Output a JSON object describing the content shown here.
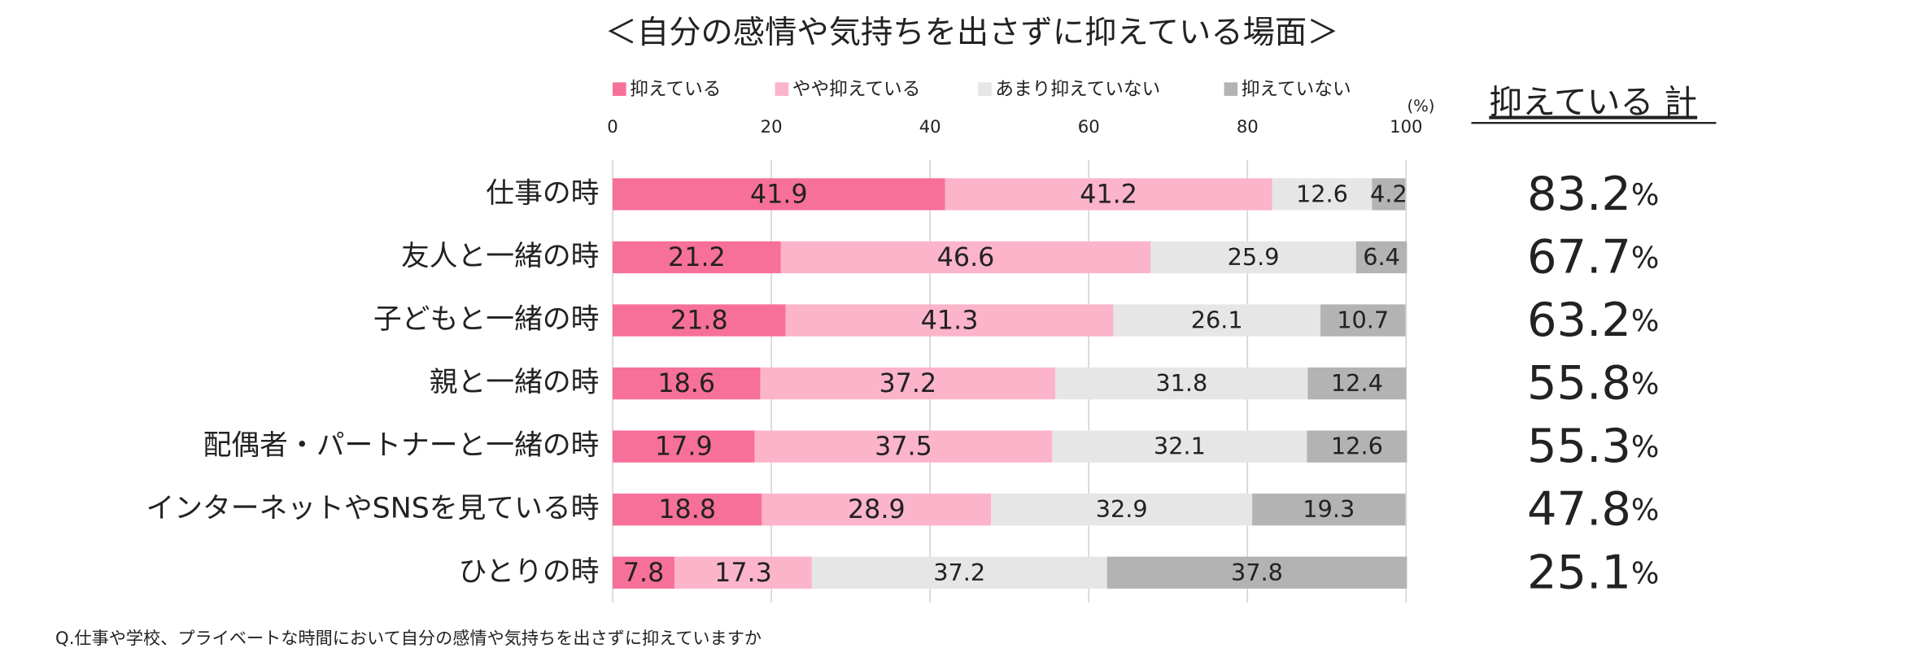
{
  "chart_data": {
    "type": "bar",
    "orientation": "horizontal",
    "stacked": true,
    "title": "＜自分の感情や気持ちを出さずに抑えている場面＞",
    "x_unit": "(%)",
    "footnote": "Q.仕事や学校、プライベートな時間において自分の感情や気持ちを出さずに抑えていますか",
    "categories": [
      "仕事の時",
      "友人と一緒の時",
      "子どもと一緒の時",
      "親と一緒の時",
      "配偶者・パートナーと一緒の時",
      "インターネットやSNSを見ている時",
      "ひとりの時"
    ],
    "series": [
      {
        "name": "抑えている",
        "color": "#f7709a",
        "values": [
          41.9,
          21.2,
          21.8,
          18.6,
          17.9,
          18.8,
          7.8
        ]
      },
      {
        "name": "やや抑えている",
        "color": "#fbb4ca",
        "values": [
          41.2,
          46.6,
          41.3,
          37.2,
          37.5,
          28.9,
          17.3
        ]
      },
      {
        "name": "あまり抑えていない",
        "color": "#e6e6e6",
        "values": [
          12.6,
          25.9,
          26.1,
          31.8,
          32.1,
          32.9,
          37.2
        ]
      },
      {
        "name": "抑えていない",
        "color": "#b3b3b3",
        "values": [
          4.2,
          6.4,
          10.7,
          12.4,
          12.6,
          19.3,
          37.8
        ]
      }
    ],
    "xlim": [
      0,
      100
    ],
    "xticks": [
      0,
      20,
      40,
      60,
      80,
      100
    ],
    "grid": true,
    "legend": "top",
    "totals": {
      "label": "抑えている 計",
      "values": [
        83.2,
        67.7,
        63.2,
        55.8,
        55.3,
        47.8,
        25.1
      ],
      "unit": "%"
    }
  }
}
